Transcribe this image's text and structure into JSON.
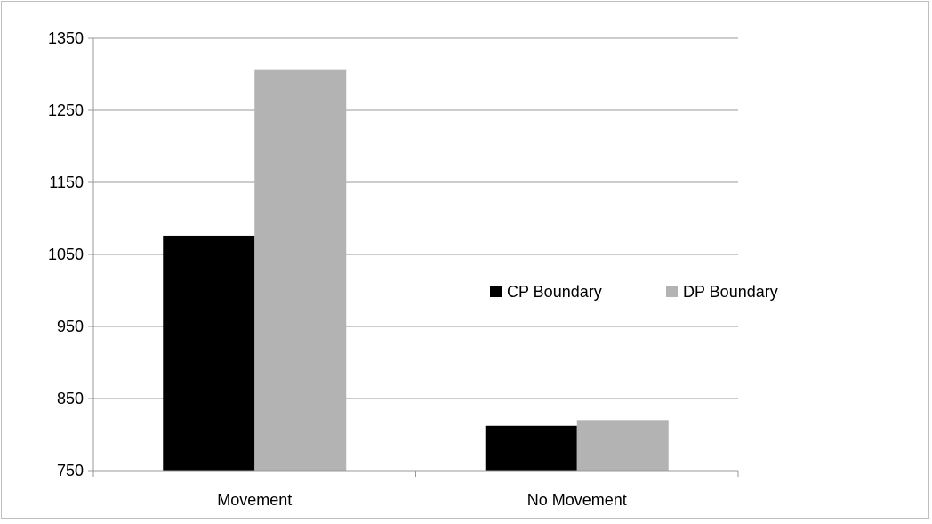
{
  "chart_data": {
    "type": "bar",
    "categories": [
      "Movement",
      "No Movement"
    ],
    "series": [
      {
        "name": "CP Boundary",
        "values": [
          1076,
          812
        ],
        "color": "#000000"
      },
      {
        "name": "DP Boundary",
        "values": [
          1306,
          820
        ],
        "color": "#b3b3b3"
      }
    ],
    "ylim": [
      750,
      1350
    ],
    "yticks": [
      750,
      850,
      950,
      1050,
      1150,
      1250,
      1350
    ],
    "ytick_labels": [
      "750",
      "850",
      "950",
      "1050",
      "1150",
      "1250",
      "1350"
    ],
    "grid": true,
    "gridline_color": "#999999",
    "legend_position": "right",
    "title": "",
    "xlabel": "",
    "ylabel": ""
  }
}
